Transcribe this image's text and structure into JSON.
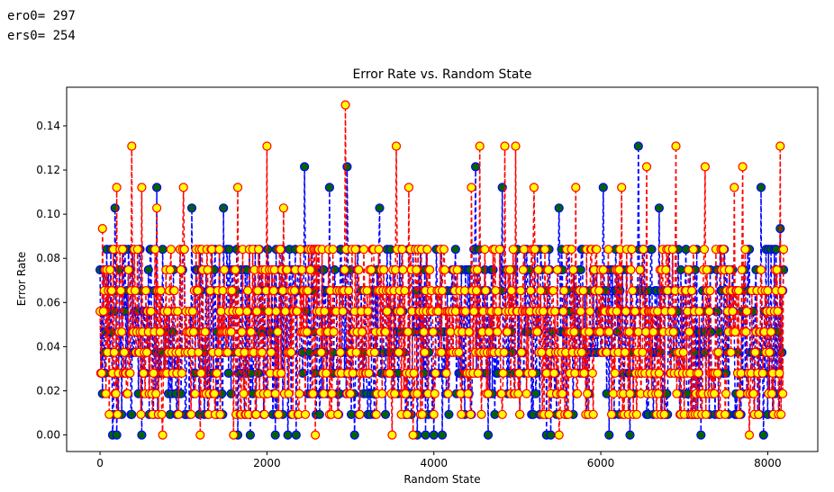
{
  "output": {
    "line1": "ero0= 297",
    "line2": "ers0= 254"
  },
  "chart_data": {
    "type": "line",
    "title": "Error Rate vs. Random State",
    "xlabel": "Random State",
    "ylabel": "Error Rate",
    "xlim": [
      -400,
      8600
    ],
    "ylim": [
      -0.0075,
      0.1575
    ],
    "xticks": [
      0,
      2000,
      4000,
      6000,
      8000
    ],
    "yticks": [
      0.0,
      0.02,
      0.04,
      0.06,
      0.08,
      0.1,
      0.12,
      0.14
    ],
    "x_range": [
      0,
      8191
    ],
    "grid": false,
    "legend": "none",
    "series": [
      {
        "role": "ero",
        "line_color": "#0000ff",
        "line_style": "dashed",
        "marker_face": "#006400",
        "marker_edge": "#0000ff",
        "base_values": [
          0.0093,
          0.0187,
          0.028,
          0.0374,
          0.0467,
          0.056,
          0.0654,
          0.0748,
          0.0841
        ],
        "peaks": [
          {
            "x": 180,
            "y": 0.1028
          },
          {
            "x": 680,
            "y": 0.1121
          },
          {
            "x": 1100,
            "y": 0.1028
          },
          {
            "x": 1480,
            "y": 0.1028
          },
          {
            "x": 2450,
            "y": 0.1215
          },
          {
            "x": 2750,
            "y": 0.1121
          },
          {
            "x": 2960,
            "y": 0.1215
          },
          {
            "x": 3350,
            "y": 0.1028
          },
          {
            "x": 4500,
            "y": 0.1215
          },
          {
            "x": 4820,
            "y": 0.1121
          },
          {
            "x": 5500,
            "y": 0.1028
          },
          {
            "x": 6030,
            "y": 0.1121
          },
          {
            "x": 6450,
            "y": 0.1308
          },
          {
            "x": 6700,
            "y": 0.1028
          },
          {
            "x": 7920,
            "y": 0.1121
          },
          {
            "x": 8150,
            "y": 0.0935
          }
        ],
        "zeros": [
          150,
          200,
          500,
          1100,
          1650,
          1800,
          2100,
          2250,
          2350,
          3050,
          3800,
          3900,
          4000,
          4100,
          4650,
          5350,
          5400,
          6100,
          6350,
          7200,
          7950
        ]
      },
      {
        "role": "ers",
        "line_color": "#ff0000",
        "line_style": "dashed",
        "marker_face": "#ffff00",
        "marker_edge": "#ff0000",
        "base_values": [
          0.0093,
          0.0187,
          0.028,
          0.0374,
          0.0467,
          0.056,
          0.0654,
          0.0748,
          0.0841
        ],
        "peaks": [
          {
            "x": 30,
            "y": 0.0935
          },
          {
            "x": 200,
            "y": 0.1121
          },
          {
            "x": 380,
            "y": 0.1308
          },
          {
            "x": 500,
            "y": 0.1121
          },
          {
            "x": 680,
            "y": 0.1028
          },
          {
            "x": 1000,
            "y": 0.1121
          },
          {
            "x": 1650,
            "y": 0.1121
          },
          {
            "x": 2000,
            "y": 0.1308
          },
          {
            "x": 2200,
            "y": 0.1028
          },
          {
            "x": 2940,
            "y": 0.1495
          },
          {
            "x": 3550,
            "y": 0.1308
          },
          {
            "x": 3700,
            "y": 0.1121
          },
          {
            "x": 4450,
            "y": 0.1121
          },
          {
            "x": 4550,
            "y": 0.1308
          },
          {
            "x": 4850,
            "y": 0.1308
          },
          {
            "x": 4980,
            "y": 0.1308
          },
          {
            "x": 5200,
            "y": 0.1121
          },
          {
            "x": 5700,
            "y": 0.1121
          },
          {
            "x": 6250,
            "y": 0.1121
          },
          {
            "x": 6550,
            "y": 0.1215
          },
          {
            "x": 6900,
            "y": 0.1308
          },
          {
            "x": 7250,
            "y": 0.1215
          },
          {
            "x": 7600,
            "y": 0.1121
          },
          {
            "x": 7700,
            "y": 0.1215
          },
          {
            "x": 8150,
            "y": 0.1308
          }
        ],
        "zeros": [
          750,
          1200,
          1600,
          2000,
          2580,
          3500,
          3750,
          4850,
          5500,
          6550,
          7780
        ]
      }
    ]
  }
}
